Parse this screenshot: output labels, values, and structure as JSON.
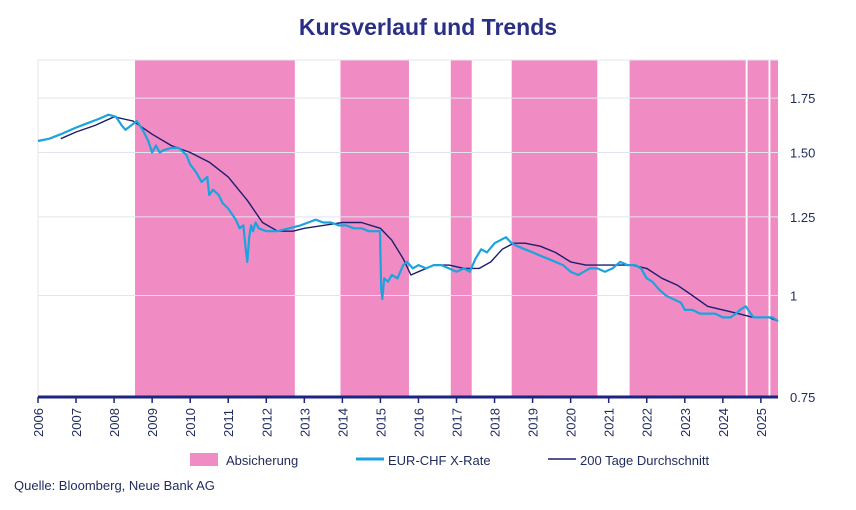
{
  "title": "Kursverlauf und Trends",
  "source": "Quelle: Bloomberg, Neue Bank AG",
  "colors": {
    "title": "#2a2f86",
    "hedge": "#f08cc3",
    "fx": "#1ba3de",
    "ma": "#1b1f6e",
    "axis": "#1c2580",
    "grid": "#e3e3ee",
    "text": "#1f2a5c"
  },
  "chart_data": {
    "type": "line",
    "title": "Kursverlauf und Trends",
    "xlabel": "",
    "ylabel": "",
    "x_range": [
      2006.0,
      2025.45
    ],
    "y_range": [
      0.75,
      1.95
    ],
    "y_ticks": [
      {
        "value": 1.75,
        "label": "1.75"
      },
      {
        "value": 1.5,
        "label": "1.50"
      },
      {
        "value": 1.25,
        "label": "1.25"
      },
      {
        "value": 1.0,
        "label": "1"
      },
      {
        "value": 0.75,
        "label": "0.75"
      }
    ],
    "x_ticks": [
      "2006",
      "2007",
      "2008",
      "2009",
      "2010",
      "2011",
      "2012",
      "2013",
      "2014",
      "2015",
      "2016",
      "2017",
      "2018",
      "2019",
      "2020",
      "2021",
      "2022",
      "2023",
      "2024",
      "2025"
    ],
    "hedge_periods": [
      [
        2008.55,
        2012.75
      ],
      [
        2013.95,
        2015.75
      ],
      [
        2016.85,
        2017.4
      ],
      [
        2018.45,
        2020.7
      ],
      [
        2021.55,
        2024.6
      ],
      [
        2024.65,
        2025.2
      ],
      [
        2025.25,
        2025.45
      ]
    ],
    "series": [
      {
        "name": "EUR-CHF X-Rate",
        "x": [
          2006.0,
          2006.3,
          2006.6,
          2007.0,
          2007.3,
          2007.6,
          2007.85,
          2008.05,
          2008.2,
          2008.3,
          2008.45,
          2008.6,
          2008.75,
          2008.9,
          2009.0,
          2009.1,
          2009.2,
          2009.3,
          2009.5,
          2009.7,
          2009.9,
          2010.0,
          2010.15,
          2010.3,
          2010.45,
          2010.5,
          2010.6,
          2010.75,
          2010.85,
          2011.0,
          2011.1,
          2011.2,
          2011.3,
          2011.4,
          2011.45,
          2011.5,
          2011.55,
          2011.6,
          2011.65,
          2011.72,
          2011.8,
          2012.0,
          2012.3,
          2012.6,
          2012.9,
          2013.1,
          2013.3,
          2013.5,
          2013.7,
          2013.9,
          2014.1,
          2014.3,
          2014.5,
          2014.7,
          2014.9,
          2014.99,
          2015.0,
          2015.02,
          2015.05,
          2015.1,
          2015.2,
          2015.3,
          2015.45,
          2015.6,
          2015.7,
          2015.85,
          2016.0,
          2016.2,
          2016.4,
          2016.6,
          2016.8,
          2017.0,
          2017.2,
          2017.35,
          2017.5,
          2017.65,
          2017.8,
          2018.0,
          2018.15,
          2018.3,
          2018.45,
          2018.6,
          2018.8,
          2019.0,
          2019.2,
          2019.4,
          2019.6,
          2019.8,
          2020.0,
          2020.2,
          2020.35,
          2020.5,
          2020.7,
          2020.9,
          2021.1,
          2021.3,
          2021.5,
          2021.7,
          2021.85,
          2022.0,
          2022.15,
          2022.3,
          2022.5,
          2022.7,
          2022.9,
          2023.0,
          2023.2,
          2023.4,
          2023.6,
          2023.8,
          2024.0,
          2024.2,
          2024.35,
          2024.45,
          2024.6,
          2024.8,
          2025.0,
          2025.2,
          2025.3,
          2025.45
        ],
        "y": [
          1.55,
          1.56,
          1.58,
          1.61,
          1.63,
          1.65,
          1.67,
          1.66,
          1.62,
          1.6,
          1.62,
          1.64,
          1.6,
          1.55,
          1.5,
          1.53,
          1.5,
          1.51,
          1.52,
          1.52,
          1.49,
          1.45,
          1.42,
          1.38,
          1.4,
          1.33,
          1.35,
          1.33,
          1.3,
          1.28,
          1.26,
          1.24,
          1.21,
          1.22,
          1.15,
          1.1,
          1.18,
          1.22,
          1.2,
          1.23,
          1.21,
          1.2,
          1.2,
          1.21,
          1.22,
          1.23,
          1.24,
          1.23,
          1.23,
          1.22,
          1.22,
          1.21,
          1.21,
          1.2,
          1.2,
          1.2,
          1.13,
          1.02,
          0.99,
          1.05,
          1.04,
          1.06,
          1.05,
          1.09,
          1.1,
          1.08,
          1.09,
          1.08,
          1.09,
          1.09,
          1.08,
          1.07,
          1.08,
          1.07,
          1.11,
          1.14,
          1.13,
          1.16,
          1.17,
          1.18,
          1.16,
          1.15,
          1.14,
          1.13,
          1.12,
          1.11,
          1.1,
          1.09,
          1.07,
          1.06,
          1.07,
          1.08,
          1.08,
          1.07,
          1.08,
          1.1,
          1.09,
          1.09,
          1.08,
          1.05,
          1.04,
          1.02,
          1.0,
          0.99,
          0.98,
          0.96,
          0.96,
          0.95,
          0.95,
          0.95,
          0.94,
          0.94,
          0.95,
          0.96,
          0.97,
          0.94,
          0.94,
          0.94,
          0.94,
          0.93
        ]
      },
      {
        "name": "200 Tage Durchschnitt",
        "x": [
          2006.6,
          2007.0,
          2007.5,
          2008.0,
          2008.5,
          2009.0,
          2009.5,
          2010.0,
          2010.5,
          2011.0,
          2011.5,
          2011.9,
          2012.3,
          2012.7,
          2013.0,
          2013.5,
          2014.0,
          2014.5,
          2015.0,
          2015.3,
          2015.6,
          2015.8,
          2016.0,
          2016.4,
          2016.8,
          2017.2,
          2017.6,
          2017.9,
          2018.2,
          2018.5,
          2018.8,
          2019.2,
          2019.6,
          2020.0,
          2020.4,
          2020.8,
          2021.2,
          2021.6,
          2022.0,
          2022.4,
          2022.8,
          2023.2,
          2023.6,
          2024.0,
          2024.4,
          2024.8,
          2025.2,
          2025.45
        ],
        "y": [
          1.56,
          1.59,
          1.62,
          1.66,
          1.64,
          1.58,
          1.53,
          1.5,
          1.46,
          1.4,
          1.31,
          1.23,
          1.2,
          1.2,
          1.21,
          1.22,
          1.23,
          1.23,
          1.21,
          1.17,
          1.11,
          1.06,
          1.07,
          1.09,
          1.09,
          1.08,
          1.08,
          1.1,
          1.14,
          1.16,
          1.16,
          1.15,
          1.13,
          1.1,
          1.09,
          1.09,
          1.09,
          1.09,
          1.08,
          1.05,
          1.03,
          1.0,
          0.97,
          0.96,
          0.95,
          0.94,
          0.94,
          0.93
        ]
      }
    ],
    "legend": [
      "Absicherung",
      "EUR-CHF X-Rate",
      "200 Tage Durchschnitt"
    ],
    "legend_position": "bottom"
  }
}
